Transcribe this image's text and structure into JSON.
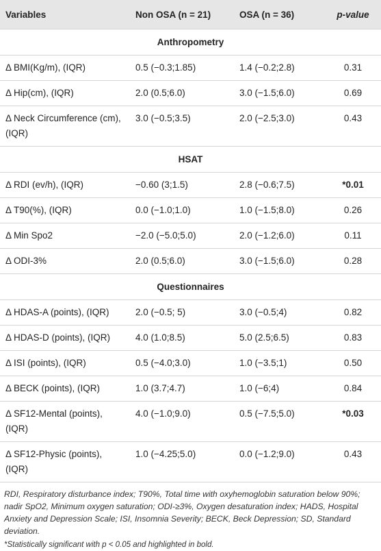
{
  "header": [
    "Variables",
    "Non OSA (n = 21)",
    "OSA (n = 36)",
    "p-value"
  ],
  "sections": [
    {
      "title": "Anthropometry",
      "rows": [
        {
          "cells": [
            "Δ BMI(Kg/m), (IQR)",
            "0.5 (−0.3;1.85)",
            "1.4 (−0.2;2.8)",
            "0.31"
          ]
        },
        {
          "cells": [
            "Δ Hip(cm), (IQR)",
            "2.0 (0.5;6.0)",
            "3.0 (−1.5;6.0)",
            "0.69"
          ]
        },
        {
          "cells": [
            "Δ Neck Circumference (cm), (IQR)",
            "3.0 (−0.5;3.5)",
            "2.0 (−2.5;3.0)",
            "0.43"
          ]
        }
      ]
    },
    {
      "title": "HSAT",
      "rows": [
        {
          "cells": [
            "Δ RDI (ev/h), (IQR)",
            "−0.60 (3;1.5)",
            "2.8 (−0.6;7.5)",
            "*0.01"
          ],
          "bold": true
        },
        {
          "cells": [
            "Δ T90(%), (IQR)",
            "0.0 (−1.0;1.0)",
            "1.0 (−1.5;8.0)",
            "0.26"
          ]
        },
        {
          "cells": [
            "Δ Min Spo2",
            "−2.0 (−5.0;5.0)",
            "2.0 (−1.2;6.0)",
            "0.11"
          ]
        },
        {
          "cells": [
            "Δ ODI-3%",
            "2.0 (0.5;6.0)",
            "3.0 (−1.5;6.0)",
            "0.28"
          ]
        }
      ]
    },
    {
      "title": "Questionnaires",
      "rows": [
        {
          "cells": [
            "Δ HDAS-A (points), (IQR)",
            "2.0 (−0.5; 5)",
            "3.0 (−0.5;4)",
            "0.82"
          ]
        },
        {
          "cells": [
            "Δ HDAS-D (points), (IQR)",
            "4.0 (1.0;8.5)",
            "5.0 (2.5;6.5)",
            "0.83"
          ]
        },
        {
          "cells": [
            "Δ ISI (points), (IQR)",
            "0.5 (−4.0;3.0)",
            "1.0 (−3.5;1)",
            "0.50"
          ]
        },
        {
          "cells": [
            "Δ BECK (points), (IQR)",
            "1.0 (3.7;4.7)",
            "1.0 (−6;4)",
            "0.84"
          ]
        },
        {
          "cells": [
            "Δ SF12-Mental (points), (IQR)",
            "4.0 (−1.0;9.0)",
            "0.5 (−7.5;5.0)",
            "*0.03"
          ],
          "bold": true
        },
        {
          "cells": [
            "Δ SF12-Physic (points), (IQR)",
            "1.0 (−4.25;5.0)",
            "0.0 (−1.2;9.0)",
            "0.43"
          ]
        }
      ]
    }
  ],
  "footnotes": [
    "RDI, Respiratory disturbance index; T90%, Total time with oxyhemoglobin saturation below 90%; nadir SpO2, Minimum oxygen saturation; ODI-≥3%, Oxygen desaturation index; HADS, Hospital Anxiety and Depression Scale; ISI, Insomnia Severity; BECK, Beck Depression; SD, Standard deviation.",
    "*Statistically significant with p < 0.05 and highlighted in bold."
  ]
}
